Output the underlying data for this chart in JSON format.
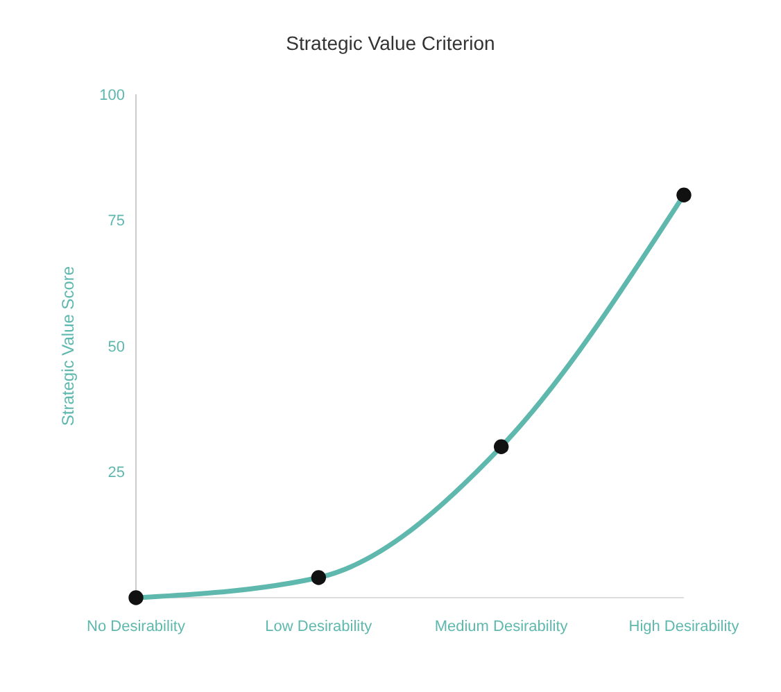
{
  "chart_data": {
    "type": "line",
    "title": "Strategic Value Criterion",
    "ylabel": "Strategic Value Score",
    "categories": [
      "No Desirability",
      "Low Desirability",
      "Medium Desirability",
      "High Desirability"
    ],
    "series": [
      {
        "color": "#5fb8ad",
        "values": [
          0,
          4,
          30,
          80
        ]
      }
    ],
    "ylim": [
      0,
      100
    ],
    "yticks": [
      25,
      50,
      75,
      100
    ],
    "marker": "circle",
    "grid": false
  }
}
